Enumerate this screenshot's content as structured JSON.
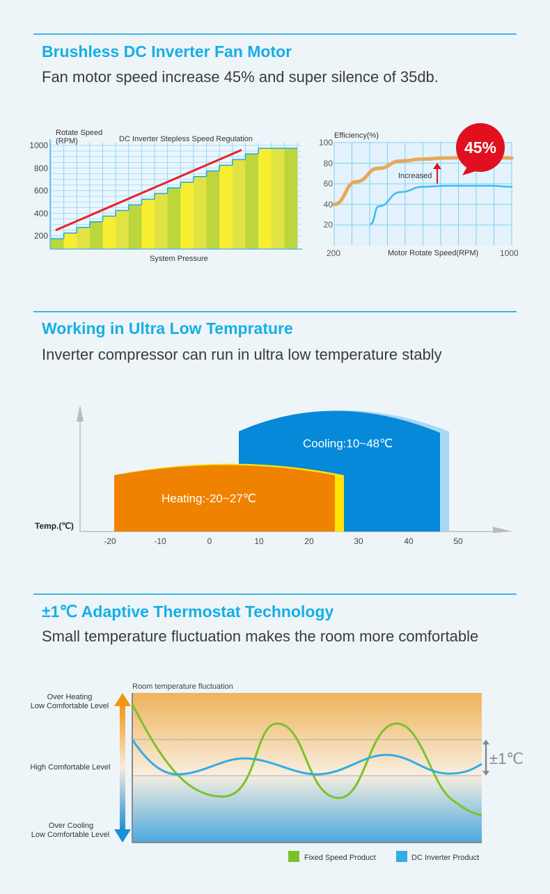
{
  "sections": [
    {
      "title": "Brushless DC Inverter Fan Motor",
      "subtitle": "Fan motor speed increase 45% and super silence of 35db."
    },
    {
      "title": "Working in Ultra Low Temprature",
      "subtitle": "Inverter compressor can run in ultra low temperature stably"
    },
    {
      "title": "±1℃ Adaptive Thermostat Technology",
      "subtitle": "Small temperature fluctuation makes the room more comfortable"
    }
  ],
  "chart_data": [
    {
      "type": "bar",
      "title": "DC Inverter Stepless Speed Regulation",
      "ylabel": "Rotate Speed (RPM)",
      "ylabel_lines": [
        "Rotate Speed",
        "(RPM)"
      ],
      "xlabel": "System Pressure",
      "yticks": [
        "1000",
        "800",
        "600",
        "400",
        "200"
      ],
      "ylim": [
        110,
        1000
      ],
      "values": [
        175,
        225,
        275,
        325,
        375,
        425,
        475,
        525,
        575,
        625,
        675,
        725,
        775,
        825,
        875,
        925,
        975,
        975,
        975
      ],
      "trend_line": {
        "color": "#e8222a",
        "from": 250,
        "to": 960
      },
      "bar_colors": [
        "#bcd63c",
        "#f7ee31",
        "#e1e344"
      ],
      "grid": true
    },
    {
      "type": "line",
      "ylabel": "Efficiency(%)",
      "xlabel": "Motor Rotate Speed(RPM)",
      "xticks": [
        "200",
        "1000"
      ],
      "yticks": [
        "100",
        "80",
        "60",
        "40",
        "20"
      ],
      "xlim": [
        200,
        1000
      ],
      "ylim": [
        0,
        100
      ],
      "grid": true,
      "series": [
        {
          "color": "#e7a85a",
          "x": [
            200,
            300,
            400,
            500,
            600,
            700,
            800,
            900,
            1000
          ],
          "y": [
            40,
            62,
            75,
            82,
            84,
            85,
            85.5,
            85.5,
            85
          ]
        },
        {
          "color": "#38bdf0",
          "x": [
            365,
            400,
            500,
            600,
            700,
            800,
            900,
            1000
          ],
          "y": [
            21,
            38,
            52,
            57,
            58,
            58,
            58,
            57
          ]
        }
      ],
      "annotation": {
        "label": "Increased",
        "badge": "45%",
        "badge_color": "#e0101e"
      }
    },
    {
      "type": "bar",
      "orientation": "range",
      "ylabel": "Temp.(℃)",
      "xticks": [
        "-20",
        "-10",
        "0",
        "10",
        "20",
        "30",
        "40",
        "50"
      ],
      "xlim": [
        -20,
        50
      ],
      "ranges": [
        {
          "label": "Heating:-20~27℃",
          "from": -20,
          "to": 27,
          "color": "#ef8200",
          "edge_color": "#ffe600"
        },
        {
          "label": "Cooling:10~48℃",
          "from": 10,
          "to": 48,
          "color": "#0689d8",
          "edge_color": "#9fd4f3"
        }
      ]
    },
    {
      "type": "line",
      "title": "Room temperature fluctuation",
      "ylabels": [
        "Over Heating\nLow Comfortable Level",
        "High Comfortable Level",
        "Over Cooling\nLow Comfortable Level"
      ],
      "ylabel_lines": {
        "top": [
          "Over Heating",
          "Low Comfortable Level"
        ],
        "mid": "High Comfortable Level",
        "bottom": [
          "Over Cooling",
          "Low Comfortable Level"
        ]
      },
      "band_label": "±1℃",
      "series": [
        {
          "name": "Fixed Speed Product",
          "color": "#7dc12a"
        },
        {
          "name": "DC Inverter Product",
          "color": "#32ade6"
        }
      ],
      "legend": "bottom-right"
    }
  ]
}
